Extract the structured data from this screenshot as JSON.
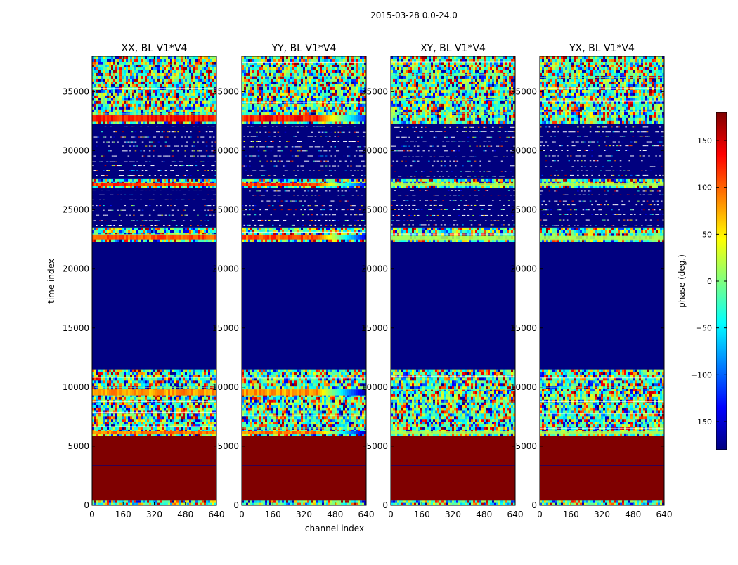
{
  "figure": {
    "suptitle": "2015-03-28 0.0-24.0",
    "ylabel": "time index",
    "xlabel": "channel index"
  },
  "chart_data": {
    "type": "heatmap",
    "xlim": [
      0,
      640
    ],
    "ylim": [
      0,
      38000
    ],
    "x_ticks": [
      0,
      160,
      320,
      480,
      640
    ],
    "y_ticks": [
      0,
      5000,
      10000,
      15000,
      20000,
      25000,
      30000,
      35000
    ],
    "panels": [
      {
        "title": "XX, BL V1*V4",
        "show_y_ticks": true
      },
      {
        "title": "YY, BL V1*V4",
        "show_y_ticks": true
      },
      {
        "title": "XY, BL V1*V4",
        "show_y_ticks": true
      },
      {
        "title": "YX, BL V1*V4",
        "show_y_ticks": true
      }
    ],
    "bands": [
      {
        "from": 0,
        "to": 400,
        "kind": "noise"
      },
      {
        "from": 400,
        "to": 5900,
        "kind": "solid",
        "phase": 180
      },
      {
        "from": 5900,
        "to": 11500,
        "kind": "noise"
      },
      {
        "from": 11500,
        "to": 22300,
        "kind": "solid",
        "phase": -180
      },
      {
        "from": 22300,
        "to": 23500,
        "kind": "noise"
      },
      {
        "from": 23500,
        "to": 26900,
        "kind": "sparse"
      },
      {
        "from": 26900,
        "to": 27600,
        "kind": "noise"
      },
      {
        "from": 27600,
        "to": 32300,
        "kind": "sparse"
      },
      {
        "from": 32300,
        "to": 38000,
        "kind": "noise"
      }
    ],
    "colorbar": {
      "label": "phase (deg.)",
      "range": [
        -180,
        180
      ],
      "ticks": [
        -150,
        -100,
        -50,
        0,
        50,
        100,
        150
      ],
      "tick_labels": [
        "−150",
        "−100",
        "−50",
        "0",
        "50",
        "100",
        "150"
      ],
      "colormap": [
        "#00007f",
        "#0000ff",
        "#007fff",
        "#00ffff",
        "#7fff7f",
        "#ffff00",
        "#ff7f00",
        "#ff0000",
        "#7f0000"
      ]
    }
  }
}
